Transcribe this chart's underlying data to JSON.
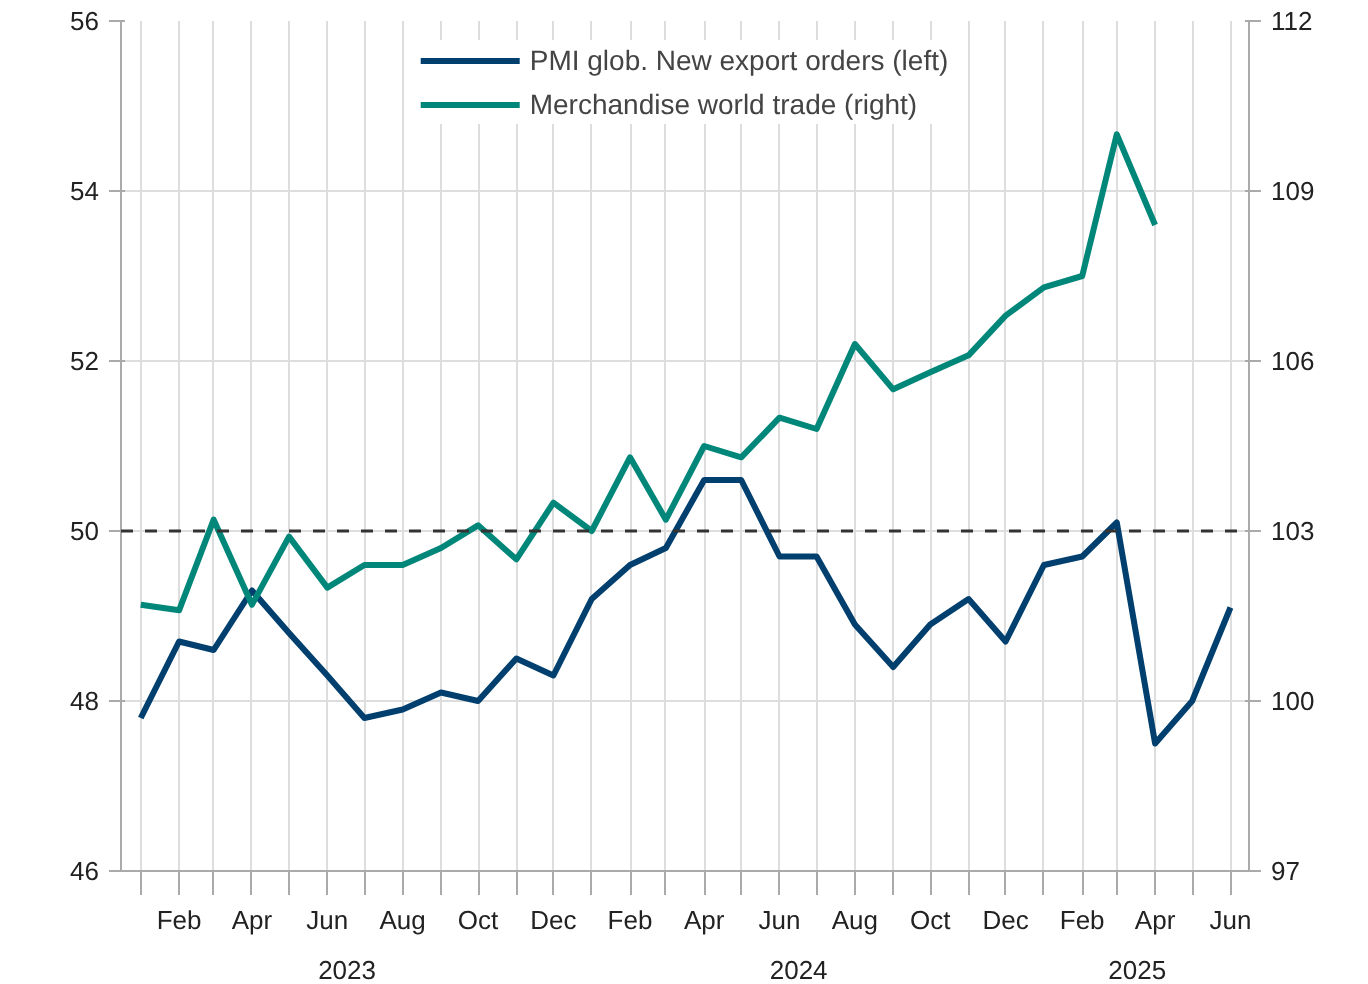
{
  "chart_data": {
    "type": "line",
    "x": [
      "2023-01",
      "2023-02",
      "2023-03",
      "2023-04",
      "2023-05",
      "2023-06",
      "2023-07",
      "2023-08",
      "2023-09",
      "2023-10",
      "2023-11",
      "2023-12",
      "2024-01",
      "2024-02",
      "2024-03",
      "2024-04",
      "2024-05",
      "2024-06",
      "2024-07",
      "2024-08",
      "2024-09",
      "2024-10",
      "2024-11",
      "2024-12",
      "2025-01",
      "2025-02",
      "2025-03",
      "2025-04",
      "2025-05",
      "2025-06"
    ],
    "series": [
      {
        "name": "PMI glob. New export orders (left)",
        "color": "#003f6e",
        "values": [
          47.8,
          48.7,
          48.6,
          49.3,
          48.8,
          48.3,
          47.8,
          47.9,
          48.1,
          48.0,
          48.5,
          48.3,
          49.2,
          49.6,
          49.8,
          50.6,
          50.6,
          49.7,
          49.7,
          48.9,
          48.4,
          48.9,
          49.2,
          48.7,
          49.6,
          49.7,
          50.1,
          47.5,
          48.0,
          49.1
        ]
      },
      {
        "name": "Merchandise world trade (right)",
        "color": "#00877a",
        "axis": "y2",
        "values": [
          101.7,
          101.6,
          103.2,
          101.7,
          102.9,
          102.0,
          102.4,
          102.4,
          102.7,
          103.1,
          102.5,
          103.5,
          103.0,
          104.3,
          103.2,
          104.5,
          104.3,
          105.0,
          104.8,
          106.3,
          105.5,
          105.8,
          106.1,
          106.8,
          107.3,
          107.5,
          110.0,
          108.4,
          null,
          null
        ]
      }
    ],
    "xlim": [
      "2022-12-16",
      "2025-06-16"
    ],
    "xticks": [
      {
        "value": "2023-01",
        "label": null
      },
      {
        "value": "2023-02",
        "label": "Feb"
      },
      {
        "value": "2023-03",
        "label": null
      },
      {
        "value": "2023-04",
        "label": "Apr"
      },
      {
        "value": "2023-05",
        "label": null
      },
      {
        "value": "2023-06",
        "label": "Jun"
      },
      {
        "value": "2023-07",
        "label": null
      },
      {
        "value": "2023-08",
        "label": "Aug"
      },
      {
        "value": "2023-09",
        "label": null
      },
      {
        "value": "2023-10",
        "label": "Oct"
      },
      {
        "value": "2023-11",
        "label": null
      },
      {
        "value": "2023-12",
        "label": "Dec"
      },
      {
        "value": "2024-01",
        "label": null
      },
      {
        "value": "2024-02",
        "label": "Feb"
      },
      {
        "value": "2024-03",
        "label": null
      },
      {
        "value": "2024-04",
        "label": "Apr"
      },
      {
        "value": "2024-05",
        "label": null
      },
      {
        "value": "2024-06",
        "label": "Jun"
      },
      {
        "value": "2024-07",
        "label": null
      },
      {
        "value": "2024-08",
        "label": "Aug"
      },
      {
        "value": "2024-09",
        "label": null
      },
      {
        "value": "2024-10",
        "label": "Oct"
      },
      {
        "value": "2024-11",
        "label": null
      },
      {
        "value": "2024-12",
        "label": "Dec"
      },
      {
        "value": "2025-01",
        "label": null
      },
      {
        "value": "2025-02",
        "label": "Feb"
      },
      {
        "value": "2025-03",
        "label": null
      },
      {
        "value": "2025-04",
        "label": "Apr"
      },
      {
        "value": "2025-05",
        "label": null
      },
      {
        "value": "2025-06",
        "label": "Jun"
      }
    ],
    "ylim": [
      46,
      56
    ],
    "yticks": [
      46,
      48,
      50,
      52,
      54,
      56
    ],
    "y2lim": [
      97,
      112
    ],
    "y2ticks": [
      97,
      100,
      103,
      106,
      109,
      112
    ],
    "ref_lines": [
      {
        "axis": "y",
        "value": 50,
        "color": "#333333",
        "line_style": "dashed"
      }
    ],
    "annotations": [
      "2023",
      "2024",
      "2025"
    ],
    "grid": true,
    "legend": "top",
    "marker": "none",
    "line_style": "solid"
  }
}
